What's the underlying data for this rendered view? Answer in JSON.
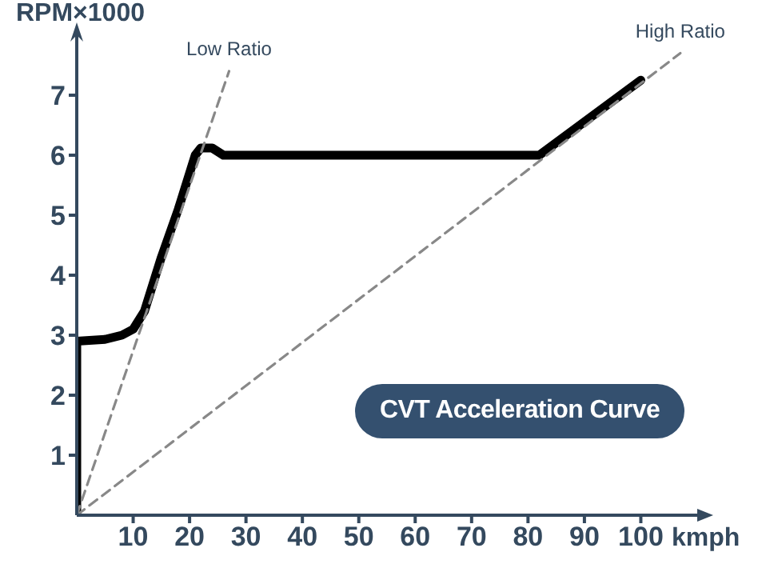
{
  "chart_data": {
    "type": "line",
    "ylabel": "RPM×1000",
    "xlabel": "kmph",
    "annotations": [
      "CVT Acceleration Curve"
    ],
    "xlim": [
      0,
      110
    ],
    "xticks": [
      10,
      20,
      30,
      40,
      50,
      60,
      70,
      80,
      90,
      100
    ],
    "ylim": [
      0,
      8
    ],
    "yticks": [
      1,
      2,
      3,
      4,
      5,
      6,
      7
    ],
    "marker": "none",
    "series": [
      {
        "color": "#000000",
        "line_style": "solid",
        "x": [
          0,
          0,
          5,
          8,
          10,
          12,
          15,
          18,
          21,
          22,
          24,
          26,
          28,
          82,
          100
        ],
        "values": [
          0,
          2.9,
          2.93,
          3.0,
          3.1,
          3.4,
          4.3,
          5.1,
          6.0,
          6.12,
          6.12,
          6.0,
          6.0,
          6.0,
          7.25
        ]
      },
      {
        "name": "Low Ratio",
        "color": "#888888",
        "line_style": "dashed",
        "x": [
          0,
          27
        ],
        "values": [
          0,
          7.4
        ]
      },
      {
        "name": "High Ratio",
        "color": "#888888",
        "line_style": "dashed",
        "x": [
          0,
          107
        ],
        "values": [
          0,
          7.7
        ]
      }
    ]
  }
}
